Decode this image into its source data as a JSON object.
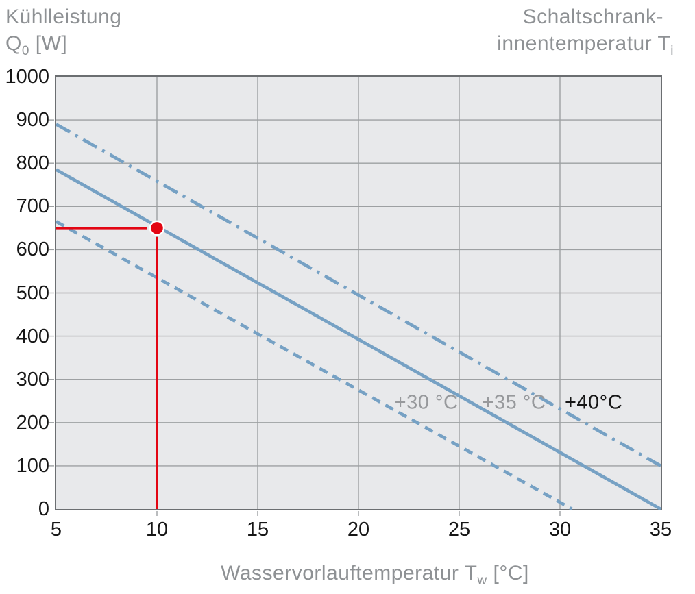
{
  "titles": {
    "left": {
      "line1": "Kühlleistung",
      "line2_main": "Q",
      "line2_sub": "0",
      "line2_rest": " [W]"
    },
    "right": {
      "line1": "Schaltschrank-",
      "line2_main": "innentemperatur T",
      "line2_sub": "i"
    }
  },
  "xlabel": {
    "main": "Wasservorlauftemperatur T",
    "sub": "w",
    "rest": " [°C]"
  },
  "colors": {
    "line_blue": "#76a1c4",
    "marker_red": "#e30613",
    "grid_gray": "#9da0a2",
    "plot_background": "#e8e9eb",
    "plot_border": "#6b6e71",
    "text_gray": "#8e9194",
    "annotation_gray": "#97999c",
    "text_black": "#161616"
  },
  "chart_data": {
    "type": "line",
    "title": "",
    "xlabel": "Wasservorlauftemperatur Tw [°C]",
    "ylabel": "Kühlleistung Q0 [W]",
    "legend_title": "Schaltschrank-innentemperatur Ti",
    "x_range": [
      5,
      35
    ],
    "y_range": [
      0,
      1000
    ],
    "x_ticks": [
      5,
      10,
      15,
      20,
      25,
      30,
      35
    ],
    "y_ticks": [
      0,
      100,
      200,
      300,
      400,
      500,
      600,
      700,
      800,
      900,
      1000
    ],
    "grid": true,
    "series": [
      {
        "name": "Ti +30 °C",
        "style": "dashed",
        "points": [
          [
            5,
            665
          ],
          [
            30.6,
            0
          ]
        ]
      },
      {
        "name": "Ti +35 °C",
        "style": "solid",
        "points": [
          [
            5,
            785
          ],
          [
            35,
            0
          ]
        ]
      },
      {
        "name": "Ti +40 °C",
        "style": "dashdot",
        "points": [
          [
            5,
            890
          ],
          [
            35,
            100
          ]
        ]
      }
    ],
    "annotations": [
      {
        "text": "+30 °C",
        "x": 23.37,
        "y": 246,
        "color": "#97999c"
      },
      {
        "text": "+35 °C",
        "x": 27.72,
        "y": 246,
        "color": "#97999c"
      },
      {
        "text": "+40°C",
        "x": 31.67,
        "y": 246,
        "color": "#161616"
      }
    ],
    "marker": {
      "x": 10,
      "y": 650,
      "leader_lines": true
    }
  }
}
